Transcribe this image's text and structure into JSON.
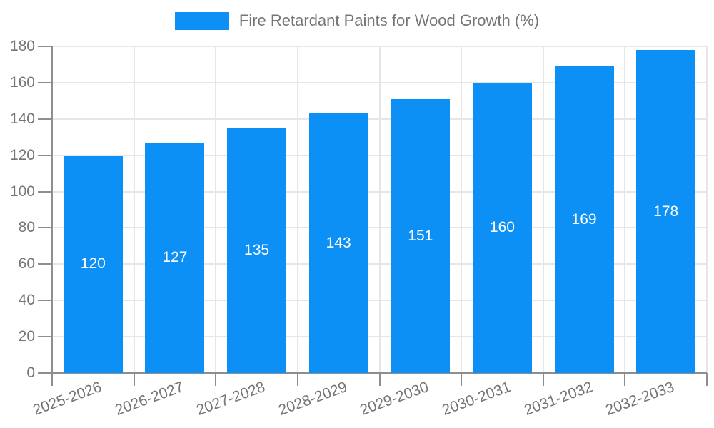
{
  "legend": {
    "label": "Fire Retardant Paints for Wood Growth (%)",
    "position": "top"
  },
  "chart_data": {
    "type": "bar",
    "title": "Fire Retardant Paints for Wood Growth (%)",
    "categories": [
      "2025-2026",
      "2026-2027",
      "2027-2028",
      "2028-2029",
      "2029-2030",
      "2030-2031",
      "2031-2032",
      "2032-2033"
    ],
    "values": [
      120,
      127,
      135,
      143,
      151,
      160,
      169,
      178
    ],
    "xlabel": "",
    "ylabel": "",
    "ylim": [
      0,
      180
    ],
    "y_ticks": [
      0,
      20,
      40,
      60,
      80,
      100,
      120,
      140,
      160,
      180
    ],
    "grid": "on",
    "legend_position": "top",
    "x_label_rotation_deg": -20,
    "colors": {
      "bar": "#0d90f5",
      "value_label": "#ffffff",
      "axis_text": "#757575",
      "grid_line": "#e6e6e6",
      "axis_line": "#8e8e8e",
      "background": "#ffffff"
    }
  }
}
